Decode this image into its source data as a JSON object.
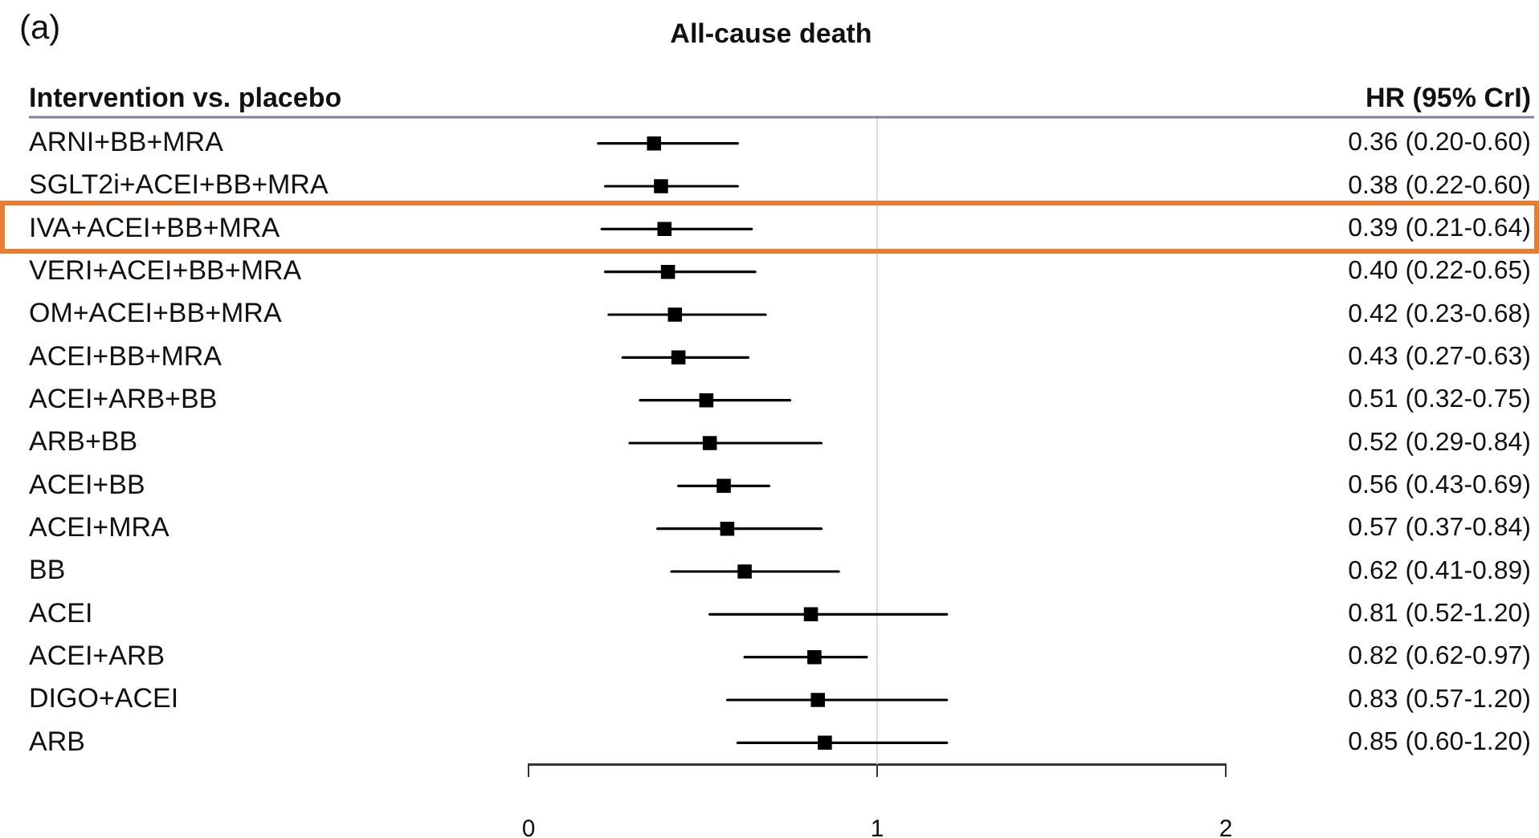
{
  "chart_data": {
    "type": "scatter",
    "orientation": "horizontal",
    "title": "All-cause death",
    "annotations": [
      "(a)",
      "HR (95% CrI)",
      "Intervention vs. placebo"
    ],
    "categories": [
      "ARNI+BB+MRA",
      "SGLT2i+ACEI+BB+MRA",
      "IVA+ACEI+BB+MRA",
      "VERI+ACEI+BB+MRA",
      "OM+ACEI+BB+MRA",
      "ACEI+BB+MRA",
      "ACEI+ARB+BB",
      "ARB+BB",
      "ACEI+BB",
      "ACEI+MRA",
      "BB",
      "ACEI",
      "ACEI+ARB",
      "DIGO+ACEI",
      "ARB"
    ],
    "values": [
      0.36,
      0.38,
      0.39,
      0.4,
      0.42,
      0.43,
      0.51,
      0.52,
      0.56,
      0.57,
      0.62,
      0.81,
      0.82,
      0.83,
      0.85
    ],
    "errors": [
      [
        0.2,
        0.6
      ],
      [
        0.22,
        0.6
      ],
      [
        0.21,
        0.64
      ],
      [
        0.22,
        0.65
      ],
      [
        0.23,
        0.68
      ],
      [
        0.27,
        0.63
      ],
      [
        0.32,
        0.75
      ],
      [
        0.29,
        0.84
      ],
      [
        0.43,
        0.69
      ],
      [
        0.37,
        0.84
      ],
      [
        0.41,
        0.89
      ],
      [
        0.52,
        1.2
      ],
      [
        0.62,
        0.97
      ],
      [
        0.57,
        1.2
      ],
      [
        0.6,
        1.2
      ]
    ],
    "value_labels": [
      "0.36 (0.20-0.60)",
      "0.38 (0.22-0.60)",
      "0.39 (0.21-0.64)",
      "0.40 (0.22-0.65)",
      "0.42 (0.23-0.68)",
      "0.43 (0.27-0.63)",
      "0.51 (0.32-0.75)",
      "0.52 (0.29-0.84)",
      "0.56 (0.43-0.69)",
      "0.57 (0.37-0.84)",
      "0.62 (0.41-0.89)",
      "0.81 (0.52-1.20)",
      "0.82 (0.62-0.97)",
      "0.83 (0.57-1.20)",
      "0.85 (0.60-1.20)"
    ],
    "color": "#000000",
    "marker": "square",
    "grid": false,
    "xlim": [
      0,
      2
    ],
    "xticks": [
      0,
      1,
      2
    ],
    "ref_lines": [
      {
        "axis": "x",
        "value": 1,
        "color": "#dddddd"
      }
    ]
  }
}
